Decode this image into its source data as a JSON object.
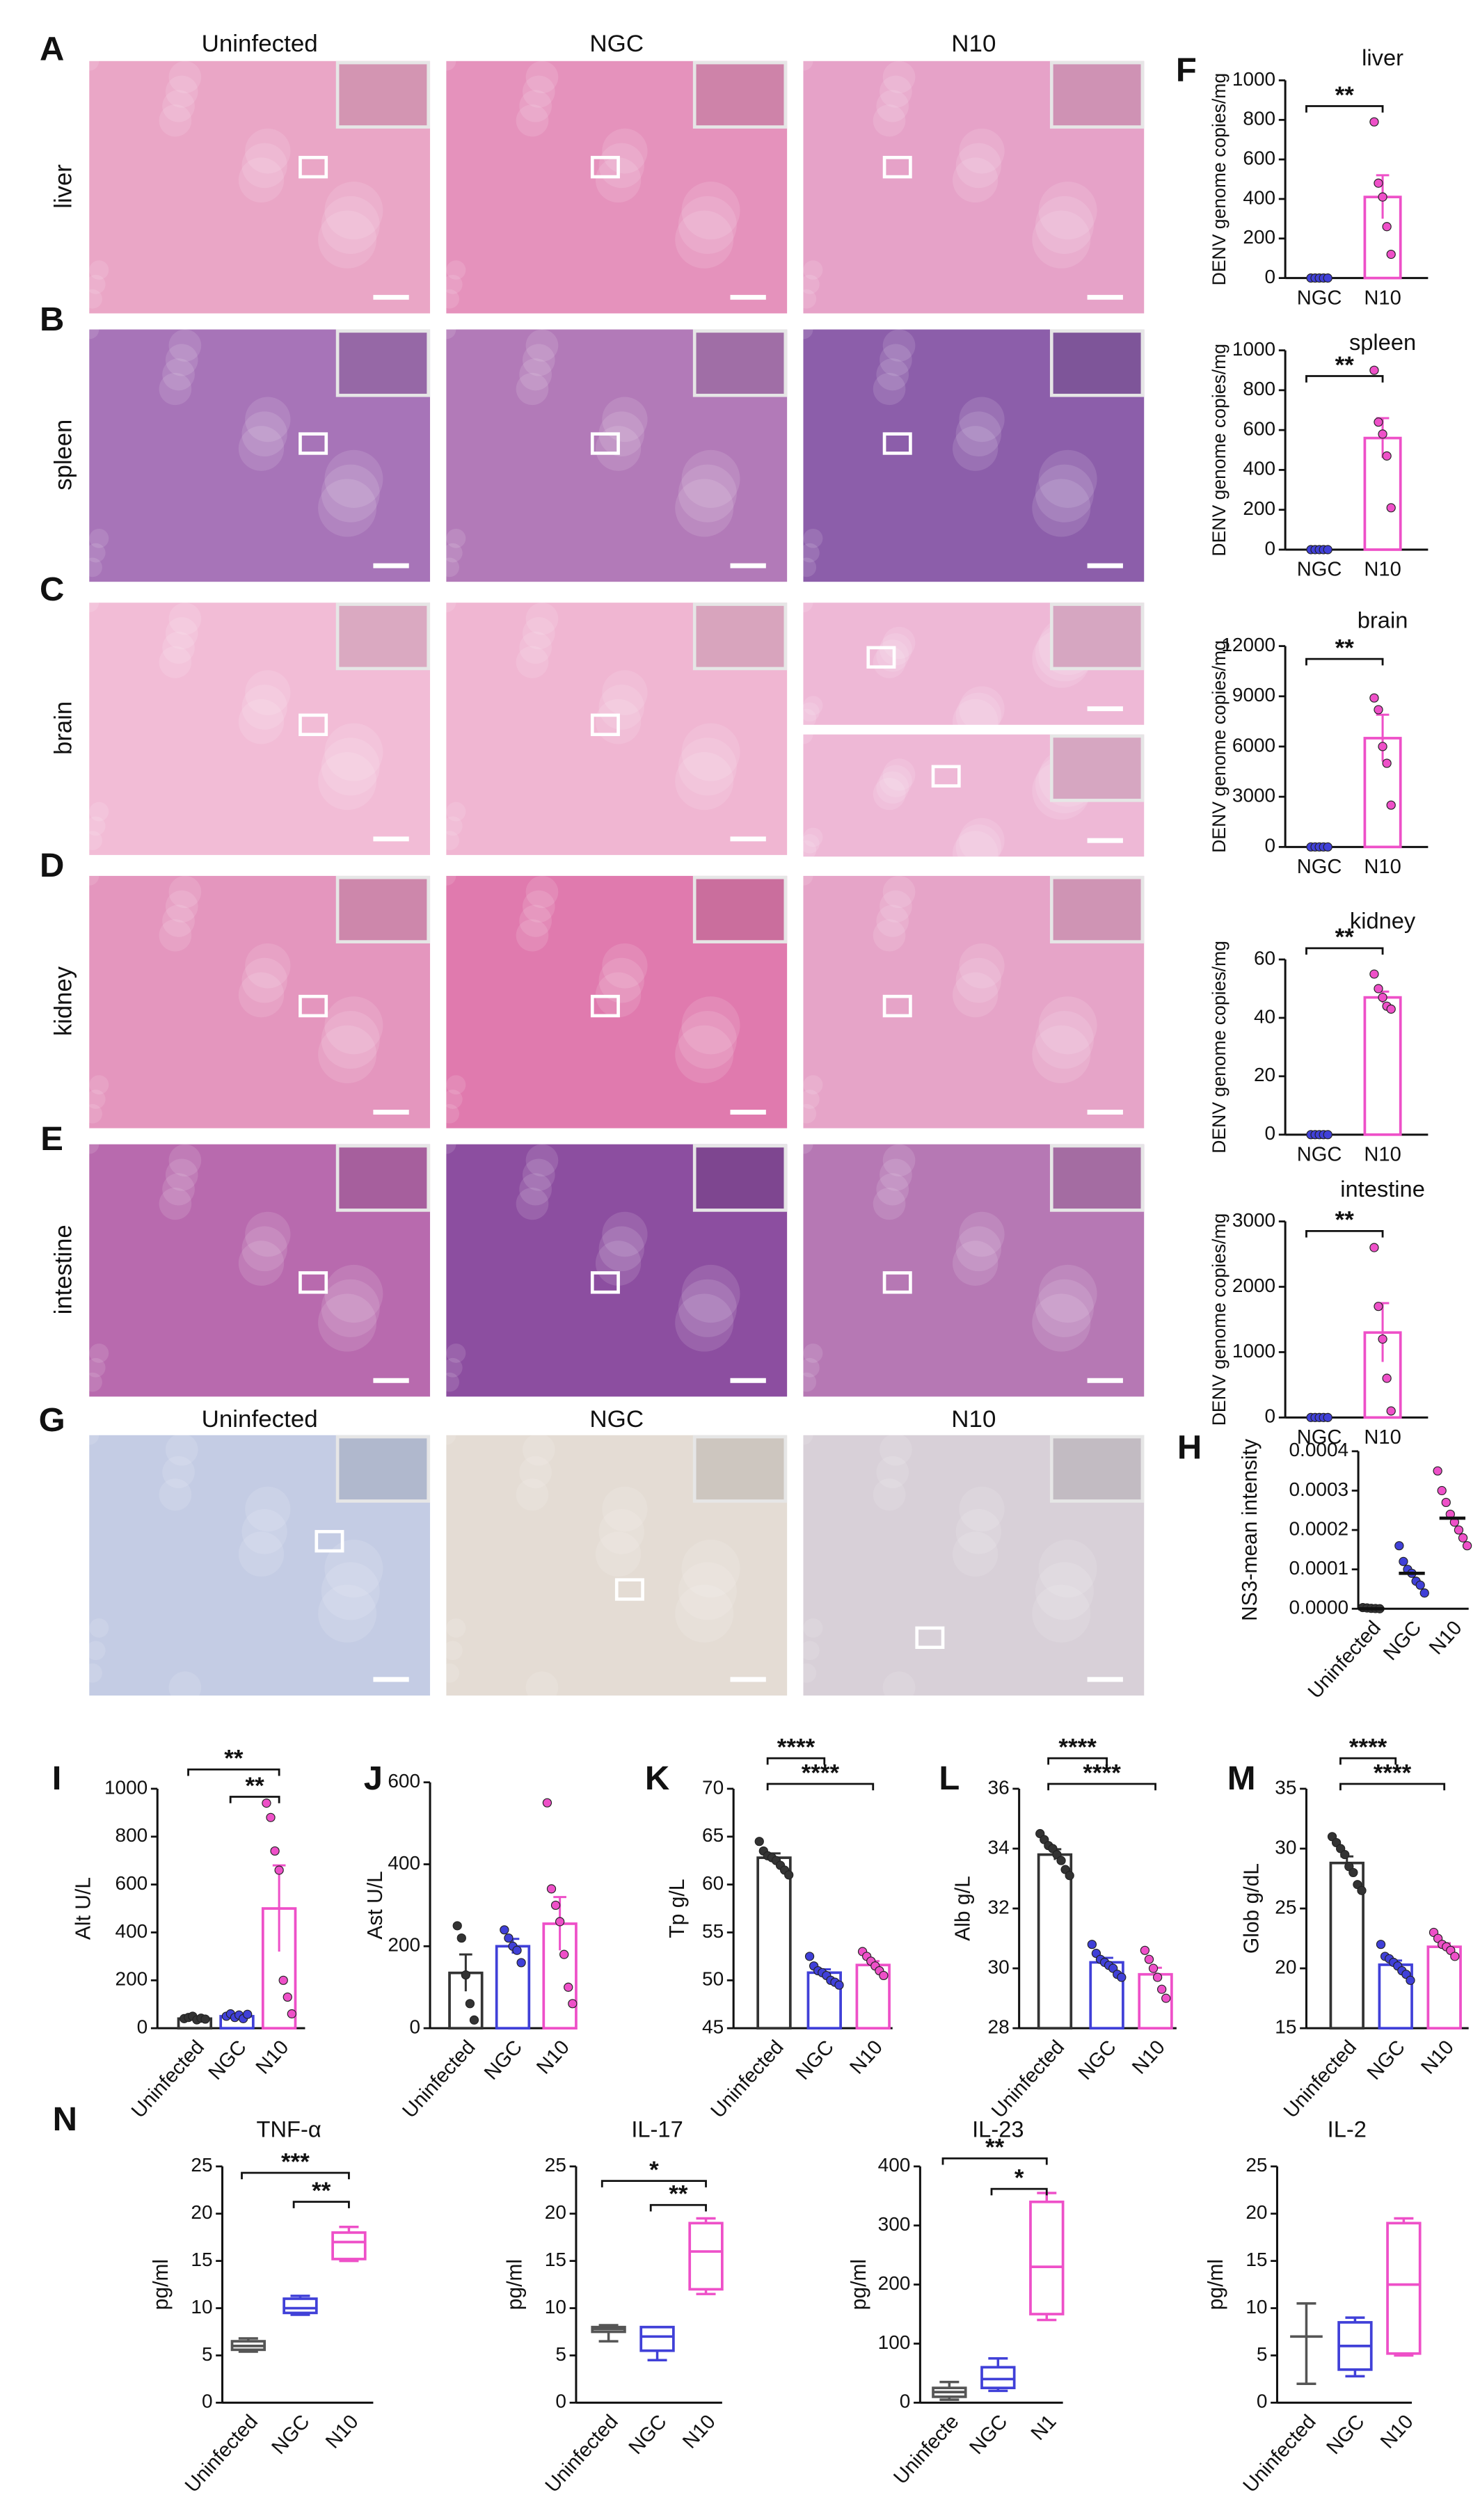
{
  "panel_letters": [
    "A",
    "B",
    "C",
    "D",
    "E",
    "F",
    "G",
    "H",
    "I",
    "J",
    "K",
    "L",
    "M",
    "N"
  ],
  "histology": {
    "columns": [
      "Uninfected",
      "NGC",
      "N10"
    ],
    "rows": [
      "liver",
      "spleen",
      "brain",
      "kidney",
      "intestine"
    ]
  },
  "ihc": {
    "columns": [
      "Uninfected",
      "NGC",
      "N10"
    ]
  },
  "chart_data": [
    {
      "type": "bar",
      "title": "liver",
      "ylabel": "DENV genome copies/mg",
      "categories": [
        "NGC",
        "N10"
      ],
      "colors": [
        "#4040d8",
        "#ee50c8"
      ],
      "values": [
        0,
        410
      ],
      "errors": [
        0,
        110
      ],
      "points": [
        [
          0,
          0,
          0,
          0,
          0
        ],
        [
          790,
          480,
          410,
          260,
          120
        ]
      ],
      "ylim": [
        0,
        1000
      ],
      "yticks": [
        0,
        200,
        400,
        600,
        800,
        1000
      ],
      "annotations": [
        "**"
      ]
    },
    {
      "type": "bar",
      "title": "spleen",
      "ylabel": "DENV genome copies/mg",
      "categories": [
        "NGC",
        "N10"
      ],
      "colors": [
        "#4040d8",
        "#ee50c8"
      ],
      "values": [
        0,
        560
      ],
      "errors": [
        0,
        100
      ],
      "points": [
        [
          0,
          0,
          0,
          0,
          0
        ],
        [
          900,
          640,
          580,
          470,
          210
        ]
      ],
      "ylim": [
        0,
        1000
      ],
      "yticks": [
        0,
        200,
        400,
        600,
        800,
        1000
      ],
      "annotations": [
        "**"
      ]
    },
    {
      "type": "bar",
      "title": "brain",
      "ylabel": "DENV genome copies/mg",
      "categories": [
        "NGC",
        "N10"
      ],
      "colors": [
        "#4040d8",
        "#ee50c8"
      ],
      "values": [
        0,
        6500
      ],
      "errors": [
        0,
        1400
      ],
      "points": [
        [
          0,
          0,
          0,
          0,
          0
        ],
        [
          8900,
          8200,
          6000,
          5000,
          2500
        ]
      ],
      "ylim": [
        0,
        12000
      ],
      "yticks": [
        0,
        3000,
        6000,
        9000,
        12000
      ],
      "annotations": [
        "**"
      ]
    },
    {
      "type": "bar",
      "title": "kidney",
      "ylabel": "DENV genome copies/mg",
      "categories": [
        "NGC",
        "N10"
      ],
      "colors": [
        "#4040d8",
        "#ee50c8"
      ],
      "values": [
        0,
        47
      ],
      "errors": [
        0,
        2
      ],
      "points": [
        [
          0,
          0,
          0,
          0,
          0
        ],
        [
          55,
          50,
          47,
          44,
          43
        ]
      ],
      "ylim": [
        0,
        60
      ],
      "yticks": [
        0,
        20,
        40,
        60
      ],
      "annotations": [
        "**"
      ]
    },
    {
      "type": "bar",
      "title": "intestine",
      "ylabel": "DENV genome copies/mg",
      "categories": [
        "NGC",
        "N10"
      ],
      "colors": [
        "#4040d8",
        "#ee50c8"
      ],
      "values": [
        0,
        1300
      ],
      "errors": [
        0,
        450
      ],
      "points": [
        [
          0,
          0,
          0,
          0,
          0
        ],
        [
          2600,
          1700,
          1200,
          600,
          100
        ]
      ],
      "ylim": [
        0,
        3000
      ],
      "yticks": [
        0,
        1000,
        2000,
        3000
      ],
      "annotations": [
        "**"
      ]
    },
    {
      "type": "strip",
      "ylabel": "NS3-mean intensity",
      "categories": [
        "Uninfected",
        "NGC",
        "N10"
      ],
      "colors": [
        "#333333",
        "#4040d8",
        "#ee50c8"
      ],
      "values": [
        0,
        9e-05,
        0.00023
      ],
      "points": [
        [
          3e-06,
          2e-06,
          1e-06,
          5e-07,
          0
        ],
        [
          0.00016,
          0.00012,
          0.0001,
          9e-05,
          7e-05,
          6e-05,
          4e-05
        ],
        [
          0.00035,
          0.0003,
          0.00027,
          0.00024,
          0.00022,
          0.0002,
          0.00018,
          0.00016
        ]
      ],
      "ylim": [
        0,
        0.0004
      ],
      "yticks": [
        {
          "value": 0,
          "label": "0.0000"
        },
        0.0001,
        0.0002,
        0.0003,
        0.0004
      ]
    },
    {
      "type": "bar",
      "ylabel": "Alt U/L",
      "categories": [
        "Uninfected",
        "NGC",
        "N10"
      ],
      "colors": [
        "#333333",
        "#4040d8",
        "#ee50c8"
      ],
      "values": [
        40,
        50,
        500
      ],
      "errors": [
        3,
        4,
        180
      ],
      "points": [
        [
          40,
          45,
          50,
          35,
          42,
          38
        ],
        [
          50,
          60,
          45,
          55,
          40,
          58
        ],
        [
          940,
          880,
          740,
          660,
          200,
          130,
          60
        ]
      ],
      "ylim": [
        0,
        1000
      ],
      "yticks": [
        0,
        200,
        400,
        600,
        800,
        1000
      ],
      "annotations": [
        "**",
        "**"
      ]
    },
    {
      "type": "bar",
      "ylabel": "Ast U/L",
      "categories": [
        "Uninfected",
        "NGC",
        "N10"
      ],
      "colors": [
        "#333333",
        "#4040d8",
        "#ee50c8"
      ],
      "values": [
        135,
        200,
        255
      ],
      "errors": [
        45,
        18,
        65
      ],
      "points": [
        [
          250,
          220,
          130,
          60,
          20
        ],
        [
          240,
          220,
          200,
          190,
          160
        ],
        [
          550,
          340,
          300,
          260,
          180,
          100,
          60
        ]
      ],
      "ylim": [
        0,
        600
      ],
      "yticks": [
        0,
        200,
        400,
        600
      ]
    },
    {
      "type": "bar",
      "ylabel": "Tp g/L",
      "categories": [
        "Uninfected",
        "NGC",
        "N10"
      ],
      "colors": [
        "#333333",
        "#4040d8",
        "#ee50c8"
      ],
      "values": [
        62.8,
        50.8,
        51.6
      ],
      "errors": [
        0.45,
        0.35,
        0.4
      ],
      "points": [
        [
          64.5,
          63.5,
          63,
          62.8,
          62.5,
          62,
          61.5,
          61
        ],
        [
          52.5,
          51.5,
          51,
          50.8,
          50.5,
          50,
          49.8,
          49.5
        ],
        [
          53,
          52.5,
          52,
          51.5,
          51,
          50.5
        ]
      ],
      "ylim": [
        45,
        70
      ],
      "yticks": [
        45,
        50,
        55,
        60,
        65,
        70
      ],
      "annotations": [
        "****",
        "****"
      ]
    },
    {
      "type": "bar",
      "ylabel": "Alb g/L",
      "categories": [
        "Uninfected",
        "NGC",
        "N10"
      ],
      "colors": [
        "#333333",
        "#4040d8",
        "#ee50c8"
      ],
      "values": [
        33.8,
        30.2,
        29.8
      ],
      "errors": [
        0.18,
        0.15,
        0.22
      ],
      "points": [
        [
          34.5,
          34.3,
          34.1,
          34,
          33.8,
          33.6,
          33.3,
          33.1
        ],
        [
          30.8,
          30.5,
          30.3,
          30.2,
          30.1,
          30,
          29.8,
          29.7
        ],
        [
          30.6,
          30.3,
          30,
          29.7,
          29.3,
          29
        ]
      ],
      "ylim": [
        28,
        36
      ],
      "yticks": [
        28,
        30,
        32,
        34,
        36
      ],
      "annotations": [
        "****",
        "****"
      ]
    },
    {
      "type": "bar",
      "ylabel": "Glob g/dL",
      "categories": [
        "Uninfected",
        "NGC",
        "N10"
      ],
      "colors": [
        "#333333",
        "#4040d8",
        "#ee50c8"
      ],
      "values": [
        28.8,
        20.3,
        21.8
      ],
      "errors": [
        0.55,
        0.35,
        0.3
      ],
      "points": [
        [
          31,
          30.5,
          30,
          29.5,
          28.5,
          28,
          27,
          26.5
        ],
        [
          22,
          21,
          20.8,
          20.5,
          20.2,
          19.8,
          19.5,
          19
        ],
        [
          23,
          22.5,
          22,
          21.8,
          21.5,
          21
        ]
      ],
      "ylim": [
        15,
        35
      ],
      "yticks": [
        15,
        20,
        25,
        30,
        35
      ],
      "annotations": [
        "****",
        "****"
      ]
    },
    {
      "type": "box",
      "title": "TNF-α",
      "ylabel": "pg/ml",
      "categories": [
        "Uninfected",
        "NGC",
        "N10"
      ],
      "colors": [
        "#555555",
        "#4040d8",
        "#ee50c8"
      ],
      "boxes": [
        {
          "min": 5.4,
          "q1": 5.6,
          "median": 6,
          "q3": 6.5,
          "max": 6.8
        },
        {
          "min": 9.3,
          "q1": 9.5,
          "median": 10,
          "q3": 11,
          "max": 11.3
        },
        {
          "min": 15,
          "q1": 15.2,
          "median": 17,
          "q3": 18,
          "max": 18.6
        }
      ],
      "ylim": [
        0,
        25
      ],
      "yticks": [
        0,
        5,
        10,
        15,
        20,
        25
      ],
      "annotations": [
        "***",
        "**"
      ]
    },
    {
      "type": "box",
      "title": "IL-17",
      "ylabel": "pg/ml",
      "categories": [
        "Uninfected",
        "NGC",
        "N10"
      ],
      "colors": [
        "#555555",
        "#4040d8",
        "#ee50c8"
      ],
      "boxes": [
        {
          "min": 6.5,
          "q1": 7.5,
          "median": 7.8,
          "q3": 8,
          "max": 8.2
        },
        {
          "min": 4.5,
          "q1": 5.5,
          "median": 7,
          "q3": 8,
          "max": 8
        },
        {
          "min": 11.5,
          "q1": 12,
          "median": 16,
          "q3": 19,
          "max": 19.5
        }
      ],
      "ylim": [
        0,
        25
      ],
      "yticks": [
        0,
        5,
        10,
        15,
        20,
        25
      ],
      "annotations": [
        "*",
        "**"
      ]
    },
    {
      "type": "box",
      "title": "IL-23",
      "ylabel": "pg/ml",
      "categories": [
        "Uninfecte",
        "NGC",
        "N1"
      ],
      "colors": [
        "#555555",
        "#4040d8",
        "#ee50c8"
      ],
      "boxes": [
        {
          "min": 5,
          "q1": 10,
          "median": 18,
          "q3": 25,
          "max": 35
        },
        {
          "min": 20,
          "q1": 25,
          "median": 40,
          "q3": 60,
          "max": 75
        },
        {
          "min": 140,
          "q1": 150,
          "median": 230,
          "q3": 340,
          "max": 355
        }
      ],
      "ylim": [
        0,
        400
      ],
      "yticks": [
        0,
        100,
        200,
        300,
        400
      ],
      "annotations": [
        "**",
        "*"
      ]
    },
    {
      "type": "box",
      "title": "IL-2",
      "ylabel": "pg/ml",
      "categories": [
        "Uninfected",
        "NGC",
        "N10"
      ],
      "colors": [
        "#555555",
        "#4040d8",
        "#ee50c8"
      ],
      "boxes": [
        {
          "min": 2,
          "q1": 7,
          "median": 7,
          "q3": 7,
          "max": 10.5
        },
        {
          "min": 2.8,
          "q1": 3.5,
          "median": 6,
          "q3": 8.5,
          "max": 9
        },
        {
          "min": 5,
          "q1": 5.2,
          "median": 12.5,
          "q3": 19,
          "max": 19.5
        }
      ],
      "ylim": [
        0,
        25
      ],
      "yticks": [
        0,
        5,
        10,
        15,
        20,
        25
      ]
    }
  ]
}
